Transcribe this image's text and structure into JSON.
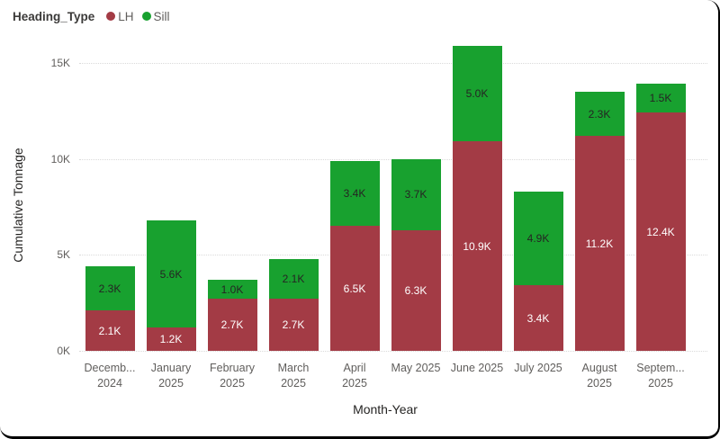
{
  "legend": {
    "title": "Heading_Type",
    "items": [
      {
        "label": "LH",
        "color": "#A33B45"
      },
      {
        "label": "Sill",
        "color": "#18A12F"
      }
    ]
  },
  "chart_data": {
    "type": "bar",
    "stacked": true,
    "xlabel": "Month-Year",
    "ylabel": "Cumulative Tonnage",
    "ylim": [
      0,
      16
    ],
    "units": "K (thousand tonnes)",
    "grid": "horizontal dotted",
    "legend_position": "top-left",
    "yticks": [
      {
        "value": 0,
        "label": "0K"
      },
      {
        "value": 5,
        "label": "5K"
      },
      {
        "value": 10,
        "label": "10K"
      },
      {
        "value": 15,
        "label": "15K"
      }
    ],
    "categories": [
      "December 2024",
      "January 2025",
      "February 2025",
      "March 2025",
      "April 2025",
      "May 2025",
      "June 2025",
      "July 2025",
      "August 2025",
      "September 2025"
    ],
    "category_display": [
      [
        "Decemb...",
        "2024"
      ],
      [
        "January",
        "2025"
      ],
      [
        "February",
        "2025"
      ],
      [
        "March",
        "2025"
      ],
      [
        "April",
        "2025"
      ],
      [
        "May 2025"
      ],
      [
        "June 2025"
      ],
      [
        "July 2025"
      ],
      [
        "August",
        "2025"
      ],
      [
        "Septem...",
        "2025"
      ]
    ],
    "series": [
      {
        "name": "LH",
        "color": "#A33B45",
        "label_color": "#FFFFFF",
        "values": [
          2.1,
          1.2,
          2.7,
          2.7,
          6.5,
          6.3,
          10.9,
          3.4,
          11.2,
          12.4
        ],
        "labels": [
          "2.1K",
          "1.2K",
          "2.7K",
          "2.7K",
          "6.5K",
          "6.3K",
          "10.9K",
          "3.4K",
          "11.2K",
          "12.4K"
        ]
      },
      {
        "name": "Sill",
        "color": "#18A12F",
        "label_color": "#252423",
        "values": [
          2.3,
          5.6,
          1.0,
          2.1,
          3.4,
          3.7,
          5.0,
          4.9,
          2.3,
          1.5
        ],
        "labels": [
          "2.3K",
          "5.6K",
          "1.0K",
          "2.1K",
          "3.4K",
          "3.7K",
          "5.0K",
          "4.9K",
          "2.3K",
          "1.5K"
        ]
      }
    ]
  }
}
